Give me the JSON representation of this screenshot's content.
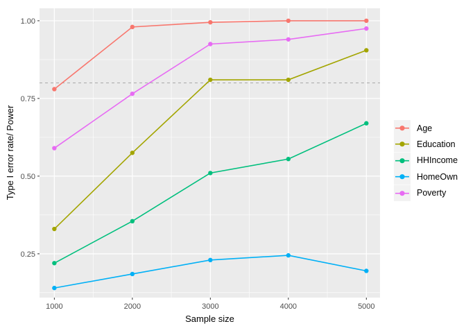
{
  "chart_data": {
    "type": "line",
    "title": "",
    "xlabel": "Sample size",
    "ylabel": "Type I error rate/ Power",
    "x": [
      1000,
      2000,
      3000,
      4000,
      5000
    ],
    "series": [
      {
        "name": "Age",
        "color": "#F8766D",
        "values": [
          0.78,
          0.98,
          0.995,
          1.0,
          1.0
        ]
      },
      {
        "name": "Education",
        "color": "#A3A500",
        "values": [
          0.33,
          0.575,
          0.81,
          0.81,
          0.905
        ]
      },
      {
        "name": "HHIncome",
        "color": "#00BF7D",
        "values": [
          0.22,
          0.355,
          0.51,
          0.555,
          0.67
        ]
      },
      {
        "name": "HomeOwn",
        "color": "#00B0F6",
        "values": [
          0.14,
          0.185,
          0.23,
          0.245,
          0.195
        ]
      },
      {
        "name": "Poverty",
        "color": "#E76BF3",
        "values": [
          0.59,
          0.765,
          0.925,
          0.94,
          0.975
        ]
      }
    ],
    "reference_line": {
      "y": 0.8,
      "style": "dashed",
      "color": "#A8A8A8"
    },
    "x_ticks": [
      1000,
      2000,
      3000,
      4000,
      5000
    ],
    "x_tick_labels": [
      "1000",
      "2000",
      "3000",
      "4000",
      "5000"
    ],
    "y_ticks": [
      0.25,
      0.5,
      0.75,
      1.0
    ],
    "y_tick_labels": [
      "0.25",
      "0.50",
      "0.75",
      "1.00"
    ],
    "xlim": [
      810,
      5175
    ],
    "ylim": [
      0.109,
      1.04
    ],
    "grid": "major+minor",
    "legend_position": "right",
    "legend_entries": [
      "Age",
      "Education",
      "HHIncome",
      "HomeOwn",
      "Poverty"
    ],
    "colors": {
      "panel_bg": "#EBEBEB",
      "grid": "#FFFFFF",
      "tick_label": "#4D4D4D",
      "tick_mark": "#333333",
      "legend_key_bg": "#F2F2F2",
      "background": "#FFFFFF"
    }
  }
}
